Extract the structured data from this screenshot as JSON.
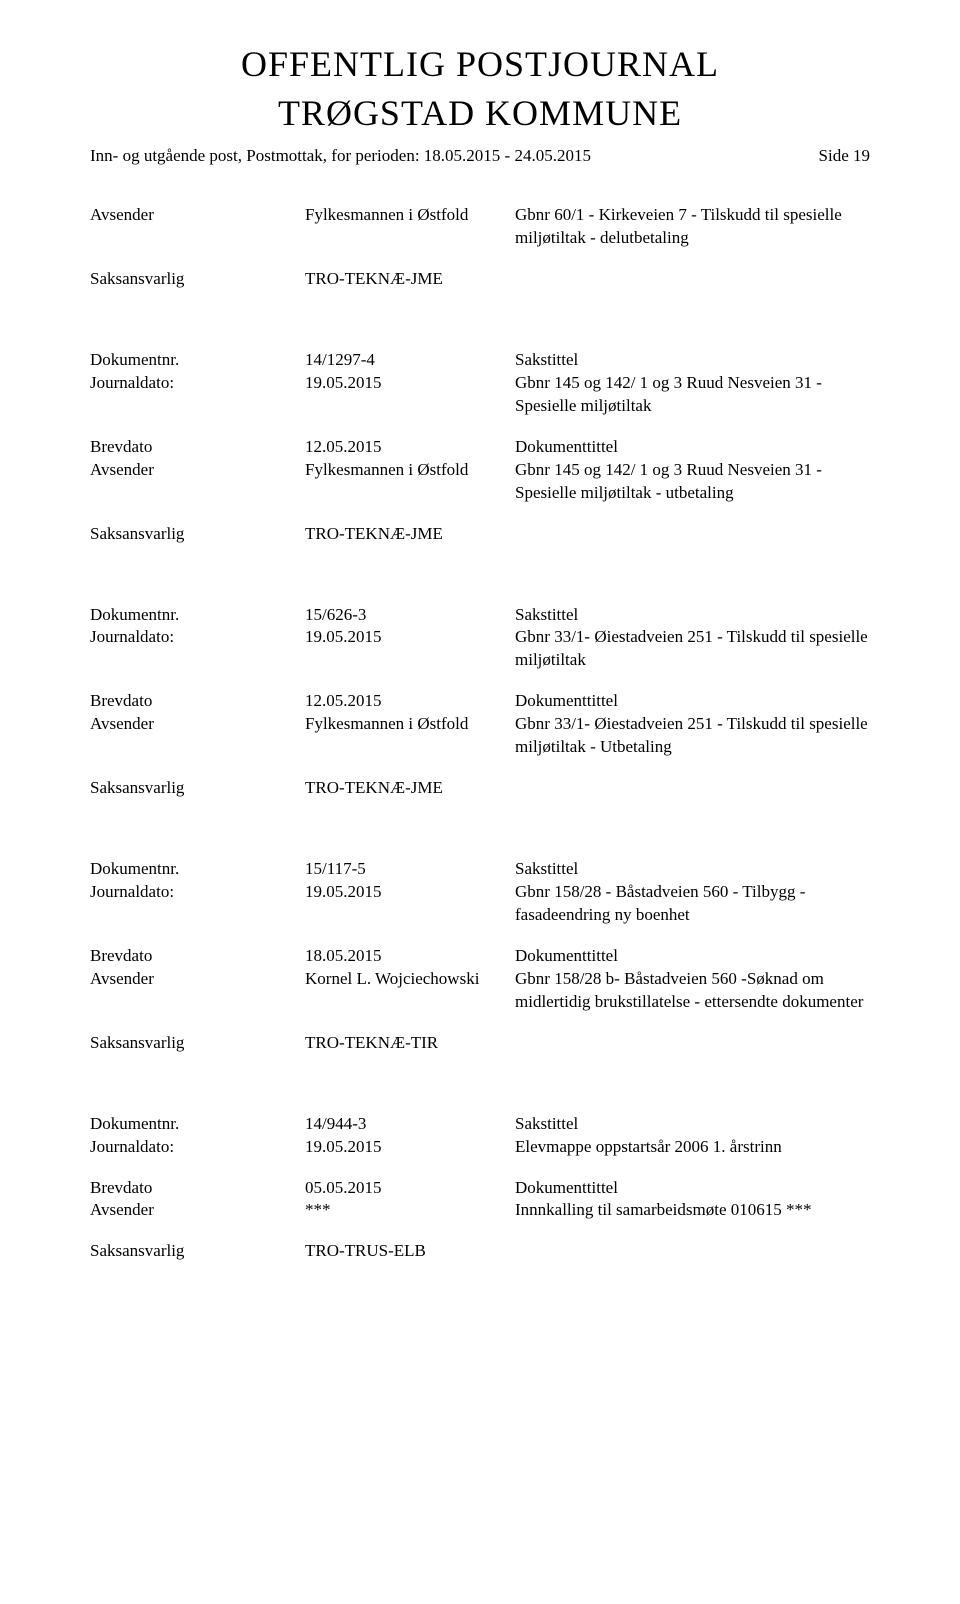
{
  "header": {
    "title_line1": "OFFENTLIG POSTJOURNAL",
    "title_line2": "TRØGSTAD KOMMUNE",
    "subtitle": "Inn- og utgående post, Postmottak, for perioden: 18.05.2015 - 24.05.2015",
    "side": "Side 19"
  },
  "labels": {
    "avsender": "Avsender",
    "saksansvarlig": "Saksansvarlig",
    "dokumentnr": "Dokumentnr.",
    "journaldato": "Journaldato:",
    "brevdato": "Brevdato",
    "sakstittel": "Sakstittel",
    "dokumenttittel": "Dokumenttittel"
  },
  "top": {
    "avsender_val": "Fylkesmannen i Østfold",
    "avsender_desc": "Gbnr 60/1 - Kirkeveien 7 - Tilskudd til spesielle miljøtiltak - delutbetaling",
    "saks_val": "TRO-TEKNÆ-JME"
  },
  "records": [
    {
      "docnr": "14/1297-4",
      "journ": "19.05.2015",
      "sakstxt": "Gbnr 145 og 142/ 1 og 3 Ruud Nesveien 31 - Spesielle miljøtiltak",
      "brev": "12.05.2015",
      "avs": "Fylkesmannen i Østfold",
      "doktxt": "Gbnr 145 og 142/ 1 og 3 Ruud Nesveien 31 - Spesielle miljøtiltak - utbetaling",
      "saks": "TRO-TEKNÆ-JME"
    },
    {
      "docnr": "15/626-3",
      "journ": "19.05.2015",
      "sakstxt": "Gbnr 33/1- Øiestadveien 251 - Tilskudd til spesielle miljøtiltak",
      "brev": "12.05.2015",
      "avs": "Fylkesmannen i Østfold",
      "doktxt": "Gbnr 33/1- Øiestadveien 251 - Tilskudd til spesielle miljøtiltak - Utbetaling",
      "saks": "TRO-TEKNÆ-JME"
    },
    {
      "docnr": "15/117-5",
      "journ": "19.05.2015",
      "sakstxt": "Gbnr 158/28 - Båstadveien 560 - Tilbygg - fasadeendring ny boenhet",
      "brev": "18.05.2015",
      "avs": "Kornel L. Wojciechowski",
      "doktxt": "Gbnr 158/28 b- Båstadveien 560 -Søknad om midlertidig brukstillatelse - ettersendte dokumenter",
      "saks": "TRO-TEKNÆ-TIR"
    },
    {
      "docnr": "14/944-3",
      "journ": "19.05.2015",
      "sakstxt": "Elevmappe oppstartsår 2006 1. årstrinn",
      "brev": "05.05.2015",
      "avs": "***",
      "doktxt": "Innnkalling til samarbeidsmøte 010615 ***",
      "saks": "TRO-TRUS-ELB"
    }
  ]
}
